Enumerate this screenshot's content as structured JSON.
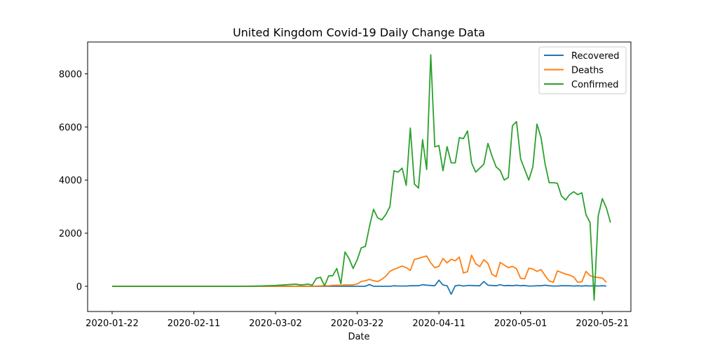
{
  "chart_data": {
    "type": "line",
    "title": "United Kingdom Covid-19 Daily Change Data",
    "xlabel": "Date",
    "ylabel": "",
    "x_start": "2020-01-22",
    "x_end": "2020-05-22",
    "xlim": [
      "2020-01-16",
      "2020-05-28"
    ],
    "ylim": [
      -950,
      9200
    ],
    "x_ticks": [
      "2020-01-22",
      "2020-02-11",
      "2020-03-02",
      "2020-03-22",
      "2020-04-11",
      "2020-05-01",
      "2020-05-21"
    ],
    "y_ticks": [
      0,
      2000,
      4000,
      6000,
      8000
    ],
    "y_tick_labels": [
      "0",
      "2000",
      "4000",
      "6000",
      "8000"
    ],
    "grid": false,
    "legend_position": "top-right",
    "series": [
      {
        "name": "Recovered",
        "color": "#1f77b4",
        "values": [
          0,
          0,
          0,
          0,
          0,
          0,
          0,
          0,
          0,
          0,
          0,
          0,
          0,
          0,
          0,
          0,
          0,
          0,
          0,
          0,
          0,
          0,
          0,
          0,
          0,
          0,
          0,
          0,
          0,
          0,
          0,
          0,
          0,
          0,
          0,
          0,
          0,
          0,
          0,
          0,
          0,
          0,
          0,
          0,
          0,
          0,
          0,
          0,
          0,
          0,
          0,
          0,
          0,
          0,
          0,
          0,
          0,
          0,
          0,
          0,
          0,
          0,
          0,
          65,
          0,
          0,
          0,
          0,
          0,
          20,
          10,
          10,
          10,
          20,
          20,
          20,
          60,
          40,
          30,
          20,
          230,
          50,
          20,
          -300,
          20,
          40,
          10,
          30,
          30,
          20,
          20,
          180,
          40,
          30,
          20,
          60,
          20,
          30,
          20,
          40,
          20,
          30,
          10,
          10,
          20,
          20,
          40,
          20,
          10,
          10,
          20,
          20,
          20,
          10,
          20,
          10,
          20,
          10,
          20,
          10,
          20,
          10
        ]
      },
      {
        "name": "Deaths",
        "color": "#ff7f0e",
        "values": [
          0,
          0,
          0,
          0,
          0,
          0,
          0,
          0,
          0,
          0,
          0,
          0,
          0,
          0,
          0,
          0,
          0,
          0,
          0,
          0,
          0,
          0,
          0,
          0,
          0,
          0,
          0,
          0,
          0,
          0,
          0,
          0,
          0,
          0,
          0,
          0,
          0,
          0,
          0,
          0,
          0,
          0,
          0,
          0,
          1,
          0,
          1,
          2,
          2,
          2,
          10,
          14,
          20,
          16,
          34,
          40,
          33,
          56,
          48,
          54,
          87,
          180,
          209,
          260,
          209,
          180,
          260,
          380,
          560,
          640,
          700,
          760,
          700,
          600,
          1010,
          1050,
          1100,
          1140,
          880,
          700,
          750,
          1050,
          880,
          1020,
          960,
          1100,
          500,
          550,
          1170,
          850,
          740,
          1000,
          860,
          450,
          360,
          900,
          800,
          700,
          750,
          660,
          300,
          280,
          680,
          650,
          560,
          630,
          400,
          200,
          150,
          580,
          520,
          460,
          420,
          350,
          150,
          170,
          560,
          400,
          350,
          330,
          310,
          150
        ]
      },
      {
        "name": "Confirmed",
        "color": "#2ca02c",
        "values": [
          0,
          0,
          0,
          0,
          0,
          0,
          0,
          0,
          0,
          0,
          0,
          0,
          0,
          0,
          0,
          0,
          0,
          0,
          0,
          0,
          0,
          0,
          0,
          0,
          0,
          0,
          0,
          0,
          0,
          0,
          0,
          0,
          2,
          3,
          5,
          8,
          10,
          15,
          20,
          25,
          30,
          40,
          50,
          60,
          70,
          80,
          50,
          60,
          80,
          40,
          300,
          340,
          20,
          390,
          400,
          670,
          90,
          1290,
          1040,
          670,
          1000,
          1450,
          1500,
          2250,
          2900,
          2580,
          2500,
          2700,
          3000,
          4350,
          4300,
          4450,
          3800,
          5960,
          3850,
          3700,
          5520,
          4400,
          8720,
          5250,
          5300,
          4350,
          5260,
          4650,
          4650,
          5600,
          5560,
          5850,
          4650,
          4300,
          4450,
          4600,
          5380,
          4900,
          4500,
          4360,
          4000,
          4100,
          6050,
          6200,
          4800,
          4400,
          4000,
          4500,
          6110,
          5600,
          4600,
          3900,
          3900,
          3880,
          3400,
          3250,
          3450,
          3560,
          3450,
          3520,
          2700,
          2400,
          -520,
          2650,
          3300,
          2950,
          2400
        ]
      }
    ]
  }
}
